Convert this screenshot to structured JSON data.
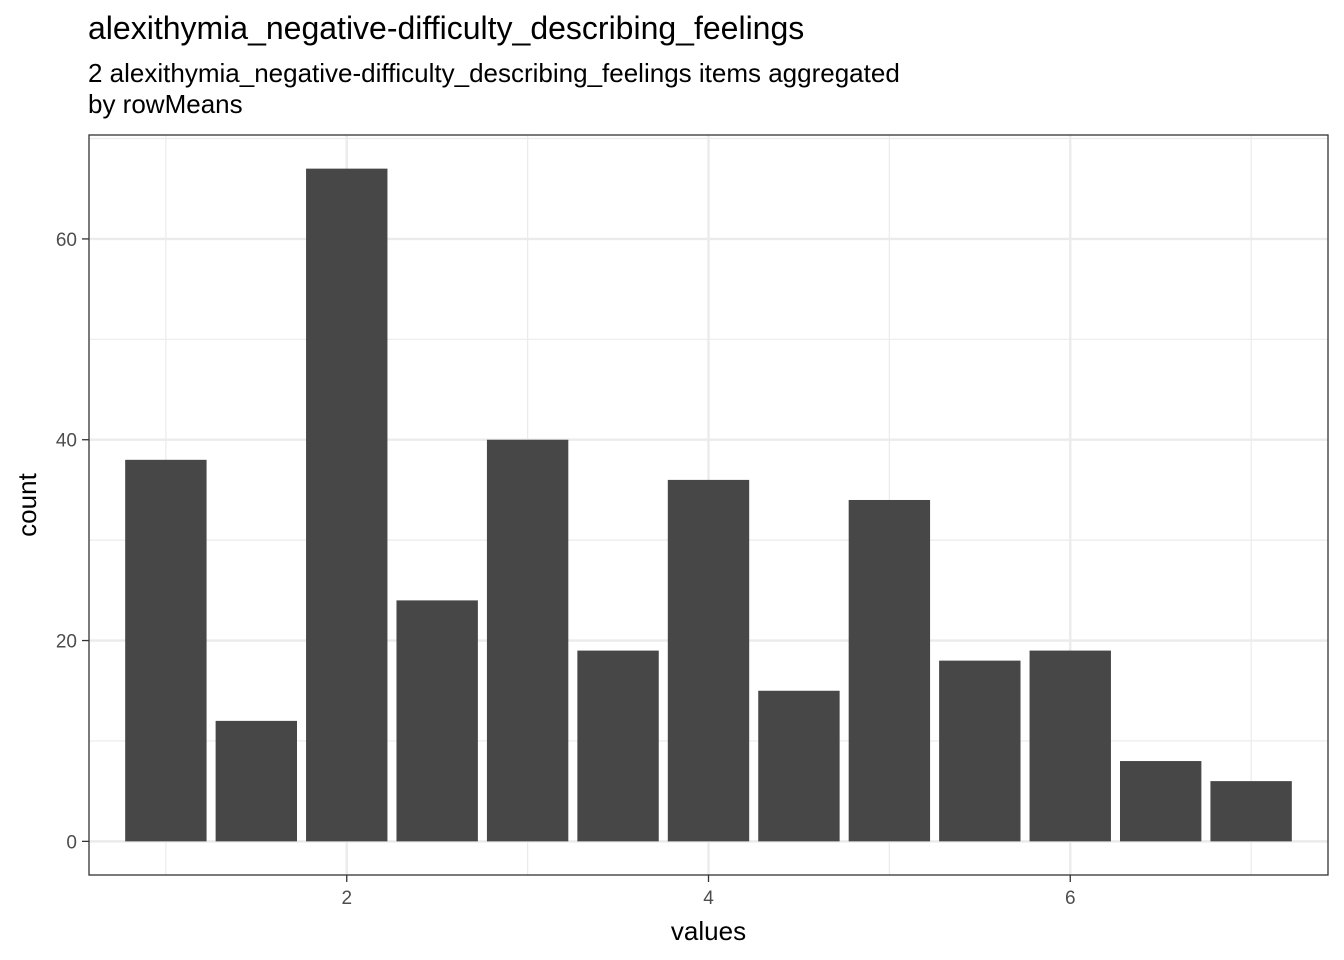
{
  "chart_data": {
    "type": "bar",
    "title": "alexithymia_negative-difficulty_describing_feelings",
    "subtitle_lines": [
      "2 alexithymia_negative-difficulty_describing_feelings items aggregated",
      "by rowMeans"
    ],
    "xlabel": "values",
    "ylabel": "count",
    "x": [
      1,
      1.5,
      2,
      2.5,
      3,
      3.5,
      4,
      4.5,
      5,
      5.5,
      6,
      6.5,
      7
    ],
    "values": [
      38,
      12,
      67,
      24,
      40,
      19,
      36,
      15,
      34,
      18,
      19,
      8,
      6
    ],
    "bar_width": 0.45,
    "xlim": [
      0.575,
      7.425
    ],
    "ylim": [
      -3.35,
      70.35
    ],
    "x_ticks": [
      2,
      4,
      6
    ],
    "x_tick_labels": [
      "2",
      "4",
      "6"
    ],
    "y_ticks": [
      0,
      20,
      40,
      60
    ],
    "y_tick_labels": [
      "0",
      "20",
      "40",
      "60"
    ],
    "x_minor_ticks": [
      1,
      3,
      5,
      7
    ],
    "y_minor_ticks": [
      10,
      30,
      50,
      70
    ],
    "grid": true,
    "bar_color": "#474747",
    "grid_color": "#ebebeb",
    "panel_border_color": "#333333"
  }
}
